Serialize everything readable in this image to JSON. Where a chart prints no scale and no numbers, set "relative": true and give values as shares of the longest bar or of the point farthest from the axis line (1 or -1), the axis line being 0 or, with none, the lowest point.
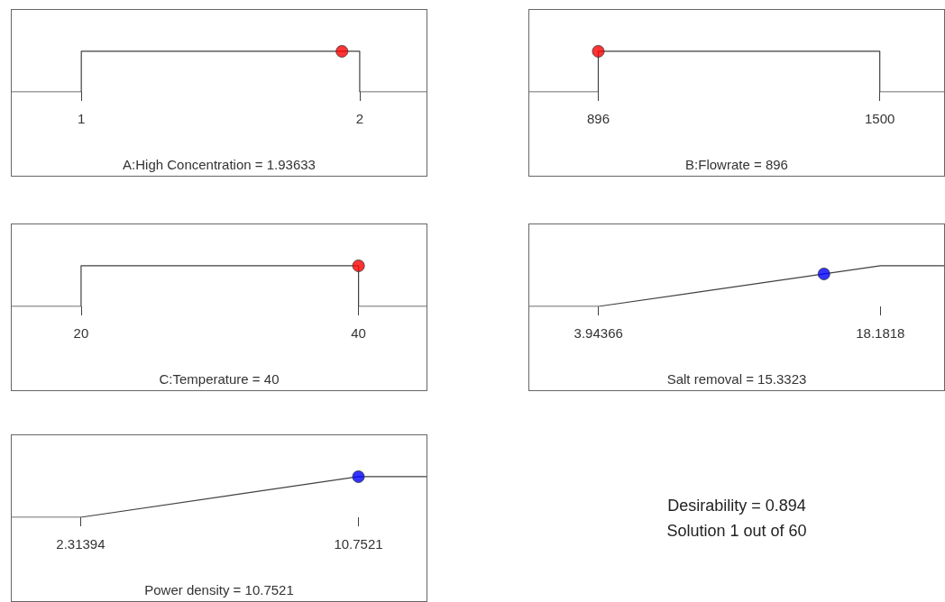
{
  "chart_data": [
    {
      "type": "line",
      "xlabel": "A:High Concentration = 1.93633",
      "relative": true,
      "xlim": [
        0.75,
        2.24
      ],
      "xticks": [
        1,
        2
      ],
      "series": [
        {
          "type": "line",
          "color": "#404040",
          "marker": "none",
          "x": [
            0.75,
            1,
            1,
            2,
            2,
            2.24
          ],
          "values": [
            0,
            0,
            1,
            1,
            0,
            0
          ]
        },
        {
          "type": "scatter",
          "color": "#ff0000",
          "marker": "circle",
          "x": [
            1.93633
          ],
          "values": [
            1
          ]
        }
      ]
    },
    {
      "type": "line",
      "xlabel": "B:Flowrate = 896",
      "relative": true,
      "xlim": [
        748,
        1638
      ],
      "xticks": [
        896,
        1500
      ],
      "series": [
        {
          "type": "line",
          "color": "#404040",
          "marker": "none",
          "x": [
            748,
            896,
            896,
            1500,
            1500,
            1638
          ],
          "values": [
            0,
            0,
            1,
            1,
            0,
            0
          ]
        },
        {
          "type": "scatter",
          "color": "#ff0000",
          "marker": "circle",
          "x": [
            896
          ],
          "values": [
            1
          ]
        }
      ]
    },
    {
      "type": "line",
      "xlabel": "C:Temperature = 40",
      "relative": true,
      "xlim": [
        15,
        44.9
      ],
      "xticks": [
        20,
        40
      ],
      "series": [
        {
          "type": "line",
          "color": "#404040",
          "marker": "none",
          "x": [
            15,
            20,
            20,
            40,
            40,
            44.9
          ],
          "values": [
            0,
            0,
            1,
            1,
            0,
            0
          ]
        },
        {
          "type": "scatter",
          "color": "#ff0000",
          "marker": "circle",
          "x": [
            40
          ],
          "values": [
            1
          ]
        }
      ]
    },
    {
      "type": "line",
      "xlabel": "Salt removal = 15.3323",
      "relative": true,
      "xlim": [
        0.45,
        21.4
      ],
      "xticks": [
        3.94366,
        18.1818
      ],
      "series": [
        {
          "type": "line",
          "color": "#404040",
          "marker": "none",
          "x": [
            0.45,
            3.94366,
            18.1818,
            21.4
          ],
          "values": [
            0,
            0,
            1,
            1
          ]
        },
        {
          "type": "scatter",
          "color": "#0000ff",
          "marker": "circle",
          "x": [
            15.3323
          ],
          "values": [
            0.8
          ]
        }
      ]
    },
    {
      "type": "line",
      "xlabel": "Power density = 10.7521",
      "relative": true,
      "xlim": [
        0.22,
        12.82
      ],
      "xticks": [
        2.31394,
        10.7521
      ],
      "series": [
        {
          "type": "line",
          "color": "#404040",
          "marker": "none",
          "x": [
            0.22,
            2.31394,
            10.7521,
            12.82
          ],
          "values": [
            0,
            0,
            1,
            1
          ]
        },
        {
          "type": "scatter",
          "color": "#0000ff",
          "marker": "circle",
          "x": [
            10.7521
          ],
          "values": [
            1
          ]
        }
      ]
    },
    {
      "type": "other",
      "annotations": [
        "Desirability = 0.894",
        "Solution 1 out of 60"
      ]
    }
  ]
}
